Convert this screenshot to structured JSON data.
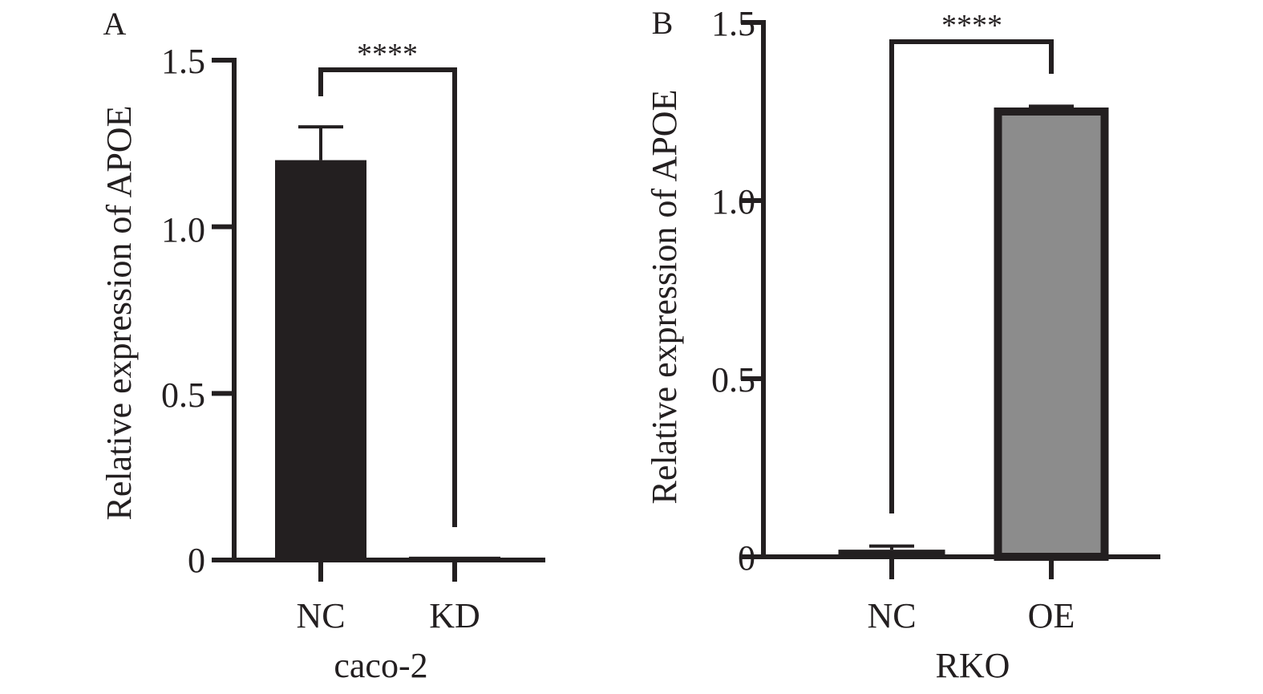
{
  "chart_data": [
    {
      "type": "bar",
      "panel_label": "A",
      "title": "",
      "categories": [
        "NC",
        "KD"
      ],
      "values": [
        1.2,
        0.01
      ],
      "errors": [
        0.1,
        0.0
      ],
      "bar_colors": [
        "#231f20",
        "#231f20"
      ],
      "xlabel": "caco-2",
      "ylabel": "Relative expression of APOE",
      "ylim": [
        0,
        1.5
      ],
      "yticks": [
        0,
        0.5,
        1.0,
        1.5
      ],
      "ytick_labels": [
        "0",
        "0.5",
        "1.0",
        "1.5"
      ],
      "significance": {
        "label": "****",
        "between": [
          "NC",
          "KD"
        ]
      },
      "grid": false
    },
    {
      "type": "bar",
      "panel_label": "B",
      "title": "",
      "categories": [
        "NC",
        "OE"
      ],
      "values": [
        0.02,
        1.25
      ],
      "errors": [
        0.01,
        0.015
      ],
      "bar_colors": [
        "#231f20",
        "#8c8c8c"
      ],
      "xlabel": "RKO",
      "ylabel": "Relative expression of APOE",
      "ylim": [
        0,
        1.5
      ],
      "yticks": [
        0,
        0.5,
        1.0,
        1.5
      ],
      "ytick_labels": [
        "0",
        "0.5",
        "1.0",
        "1.5"
      ],
      "significance": {
        "label": "****",
        "between": [
          "NC",
          "OE"
        ]
      },
      "grid": false
    }
  ]
}
